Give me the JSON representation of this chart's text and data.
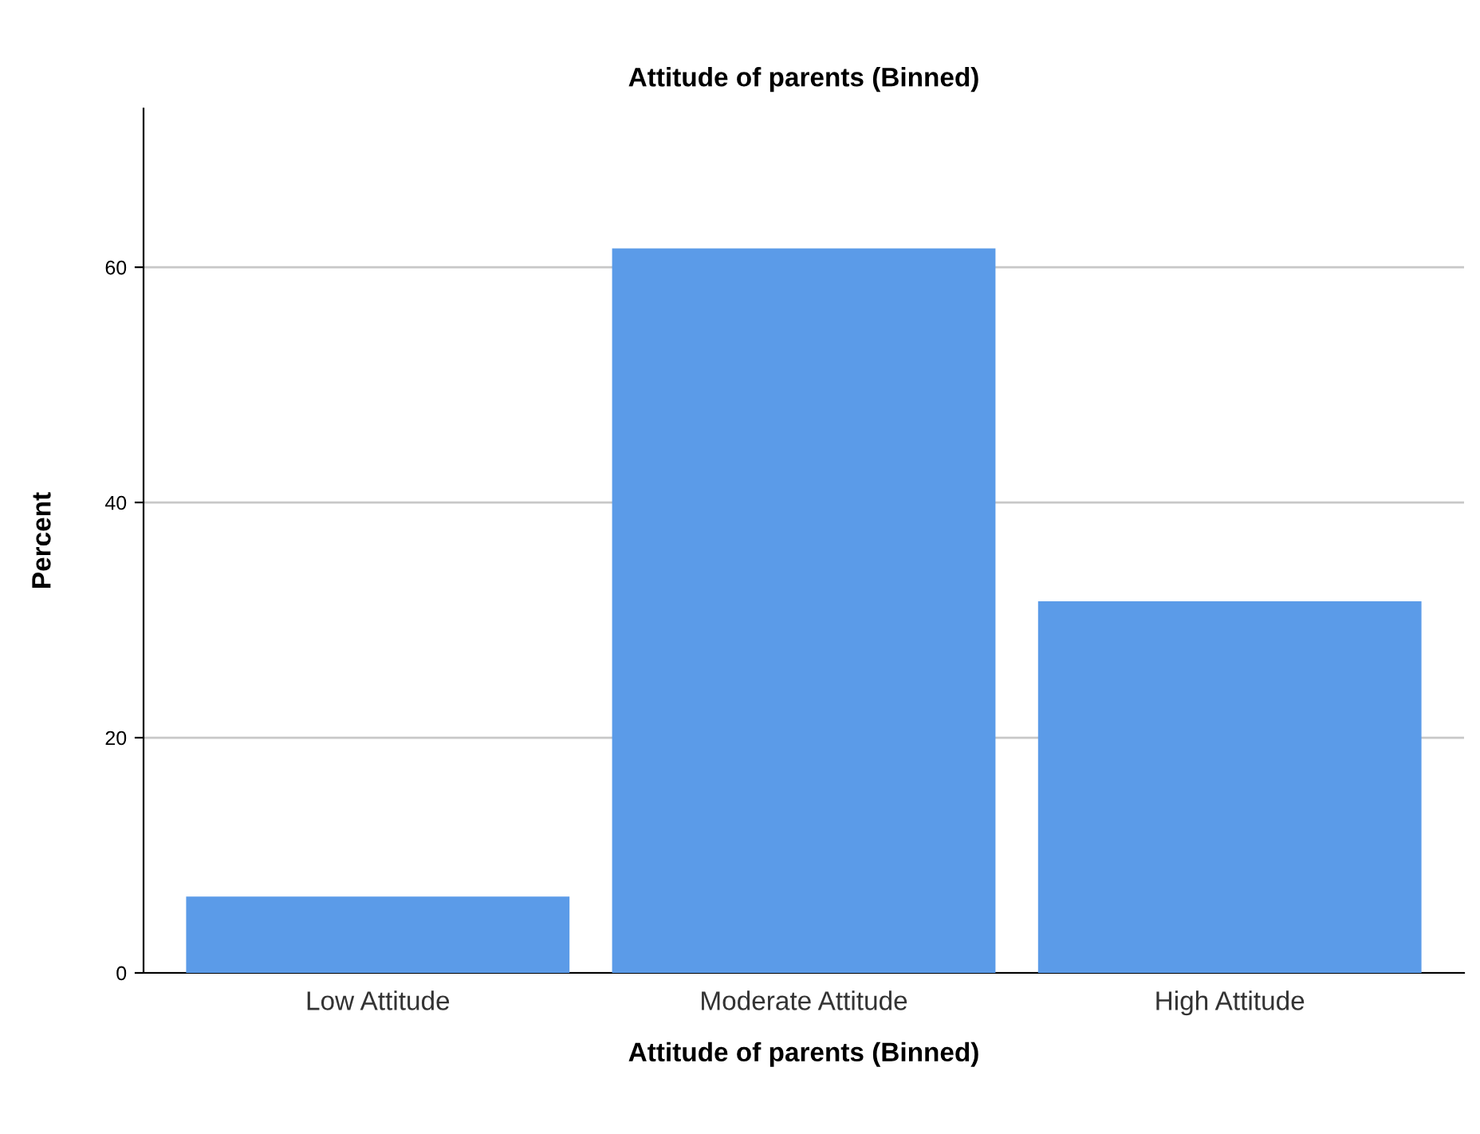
{
  "chart_data": {
    "type": "bar",
    "title": "Attitude of parents (Binned)",
    "xlabel": "Attitude of parents (Binned)",
    "ylabel": "Percent",
    "categories": [
      "Low Attitude",
      "Moderate Attitude",
      "High Attitude"
    ],
    "values": [
      6.5,
      61.6,
      31.6
    ],
    "color": "#5b9be8",
    "ylim": [
      0,
      73.5
    ],
    "yticks": [
      0,
      20,
      40,
      60
    ],
    "grid": "y",
    "legend": false
  }
}
